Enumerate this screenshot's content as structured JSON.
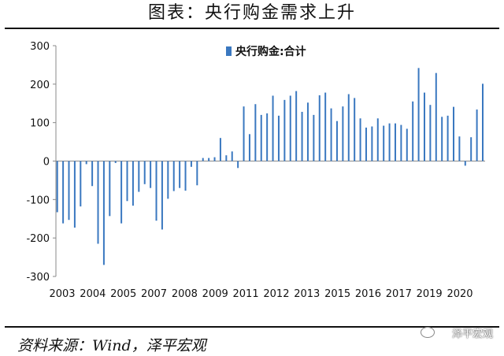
{
  "title": "图表：央行购金需求上升",
  "source": "资料来源：Wind，泽平宏观",
  "watermark": "泽平宏观",
  "chart_data": {
    "type": "bar",
    "title": "",
    "legend": {
      "label": "央行购金:合计",
      "placement": "top-center"
    },
    "ylim": [
      -300,
      300
    ],
    "yticks": [
      300,
      200,
      100,
      0,
      -100,
      -200,
      -300
    ],
    "xtick_labels": [
      "2003",
      "2004",
      "2005",
      "2007",
      "2008",
      "2009",
      "2011",
      "2012",
      "2013",
      "2015",
      "2016",
      "2017",
      "2019",
      "2020"
    ],
    "bar_color": "#3a78c0",
    "values": [
      -133,
      -162,
      -153,
      -173,
      -118,
      -8,
      -65,
      -215,
      -270,
      -143,
      -5,
      -162,
      -104,
      -116,
      -80,
      -60,
      -70,
      -155,
      -178,
      -98,
      -78,
      -70,
      -77,
      -15,
      -63,
      8,
      8,
      10,
      60,
      15,
      25,
      -18,
      142,
      70,
      148,
      120,
      124,
      170,
      118,
      159,
      170,
      182,
      128,
      152,
      120,
      171,
      178,
      137,
      104,
      142,
      174,
      164,
      111,
      87,
      90,
      111,
      92,
      98,
      98,
      94,
      84,
      155,
      242,
      178,
      146,
      229,
      115,
      118,
      141,
      64,
      -12,
      62,
      134,
      201
    ]
  }
}
